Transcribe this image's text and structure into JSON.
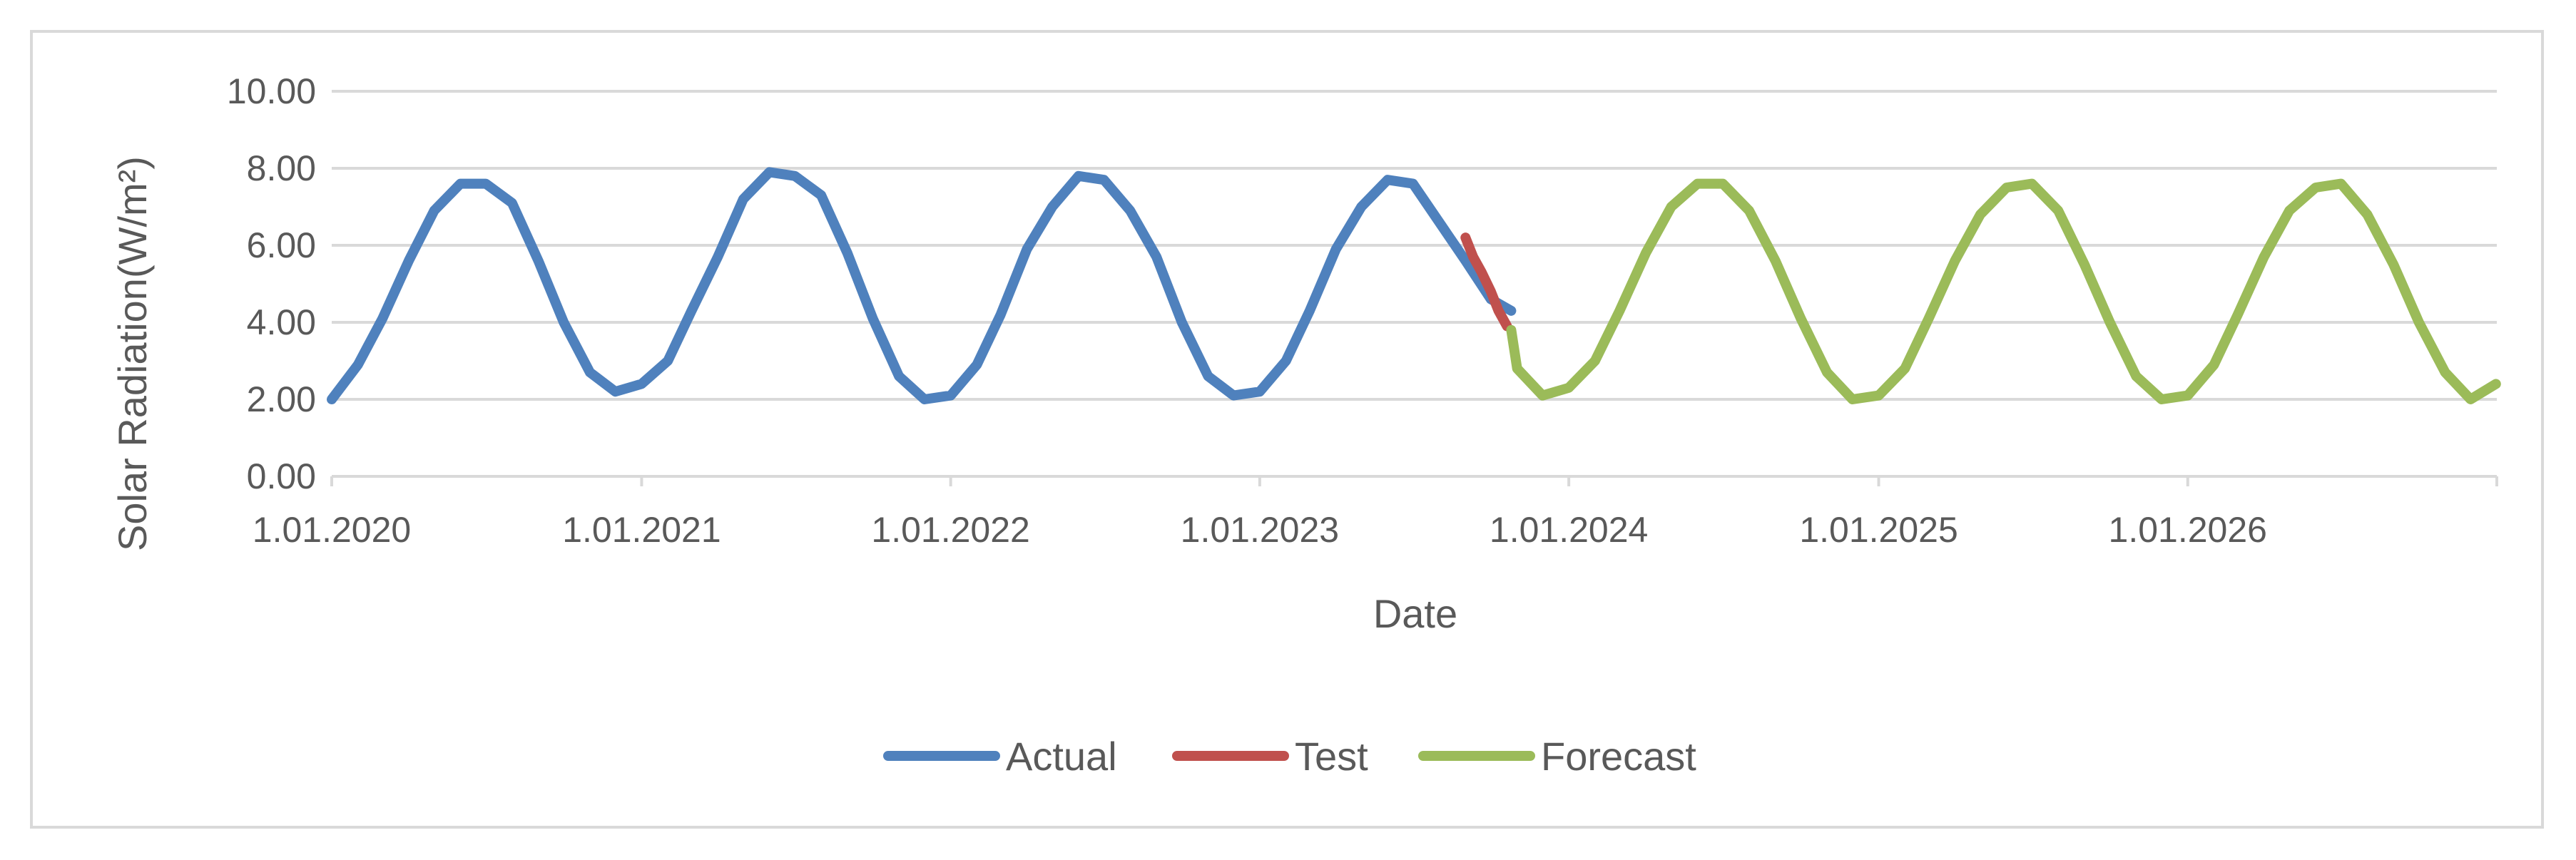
{
  "chart_data": {
    "type": "line",
    "title": "",
    "xlabel": "Date",
    "ylabel": "Solar Radiation(W/m²)",
    "ylim": [
      0,
      10
    ],
    "yticks": [
      "0.00",
      "2.00",
      "4.00",
      "6.00",
      "8.00",
      "10.00"
    ],
    "xlim": [
      "2020-01-01",
      "2027-01-01"
    ],
    "xticks": [
      {
        "date": "2020-01-01",
        "label": "1.01.2020"
      },
      {
        "date": "2021-01-01",
        "label": "1.01.2021"
      },
      {
        "date": "2022-01-01",
        "label": "1.01.2022"
      },
      {
        "date": "2023-01-01",
        "label": "1.01.2023"
      },
      {
        "date": "2024-01-01",
        "label": "1.01.2024"
      },
      {
        "date": "2025-01-01",
        "label": "1.01.2025"
      },
      {
        "date": "2026-01-01",
        "label": "1.01.2026"
      }
    ],
    "grid": true,
    "legend_position": "bottom",
    "series": [
      {
        "name": "Actual",
        "color": "#4f81bd",
        "x": [
          "2020-01-01",
          "2020-02-01",
          "2020-03-01",
          "2020-04-01",
          "2020-05-01",
          "2020-06-01",
          "2020-07-01",
          "2020-08-01",
          "2020-09-01",
          "2020-10-01",
          "2020-11-01",
          "2020-12-01",
          "2021-01-01",
          "2021-02-01",
          "2021-03-01",
          "2021-04-01",
          "2021-05-01",
          "2021-06-01",
          "2021-07-01",
          "2021-08-01",
          "2021-09-01",
          "2021-10-01",
          "2021-11-01",
          "2021-12-01",
          "2022-01-01",
          "2022-02-01",
          "2022-03-01",
          "2022-04-01",
          "2022-05-01",
          "2022-06-01",
          "2022-07-01",
          "2022-08-01",
          "2022-09-01",
          "2022-10-01",
          "2022-11-01",
          "2022-12-01",
          "2023-01-01",
          "2023-02-01",
          "2023-03-01",
          "2023-04-01",
          "2023-05-01",
          "2023-06-01",
          "2023-07-01",
          "2023-08-01",
          "2023-09-01",
          "2023-10-01",
          "2023-10-25"
        ],
        "y": [
          2.0,
          2.9,
          4.1,
          5.6,
          6.9,
          7.6,
          7.6,
          7.1,
          5.6,
          4.0,
          2.7,
          2.2,
          2.4,
          3.0,
          4.3,
          5.7,
          7.2,
          7.9,
          7.8,
          7.3,
          5.8,
          4.1,
          2.6,
          2.0,
          2.1,
          2.9,
          4.2,
          5.9,
          7.0,
          7.8,
          7.7,
          6.9,
          5.7,
          4.0,
          2.6,
          2.1,
          2.2,
          3.0,
          4.3,
          5.9,
          7.0,
          7.7,
          7.6,
          6.6,
          5.6,
          4.6,
          4.3
        ]
      },
      {
        "name": "Test",
        "color": "#c0504d",
        "x": [
          "2023-09-01",
          "2023-09-10",
          "2023-09-20",
          "2023-10-01",
          "2023-10-10",
          "2023-10-20"
        ],
        "y": [
          6.2,
          5.7,
          5.3,
          4.8,
          4.3,
          3.9
        ]
      },
      {
        "name": "Forecast",
        "color": "#9bbb59",
        "x": [
          "2023-10-25",
          "2023-11-01",
          "2023-12-01",
          "2024-01-01",
          "2024-02-01",
          "2024-03-01",
          "2024-04-01",
          "2024-05-01",
          "2024-06-01",
          "2024-07-01",
          "2024-08-01",
          "2024-09-01",
          "2024-10-01",
          "2024-11-01",
          "2024-12-01",
          "2025-01-01",
          "2025-02-01",
          "2025-03-01",
          "2025-04-01",
          "2025-05-01",
          "2025-06-01",
          "2025-07-01",
          "2025-08-01",
          "2025-09-01",
          "2025-10-01",
          "2025-11-01",
          "2025-12-01",
          "2026-01-01",
          "2026-02-01",
          "2026-03-01",
          "2026-04-01",
          "2026-05-01",
          "2026-06-01",
          "2026-07-01",
          "2026-08-01",
          "2026-09-01",
          "2026-10-01",
          "2026-11-01",
          "2026-12-01",
          "2026-12-31"
        ],
        "y": [
          3.8,
          2.8,
          2.1,
          2.3,
          3.0,
          4.3,
          5.8,
          7.0,
          7.6,
          7.6,
          6.9,
          5.6,
          4.1,
          2.7,
          2.0,
          2.1,
          2.8,
          4.1,
          5.6,
          6.8,
          7.5,
          7.6,
          6.9,
          5.5,
          4.0,
          2.6,
          2.0,
          2.1,
          2.9,
          4.2,
          5.7,
          6.9,
          7.5,
          7.6,
          6.8,
          5.5,
          4.0,
          2.7,
          2.0,
          2.4
        ]
      }
    ]
  }
}
